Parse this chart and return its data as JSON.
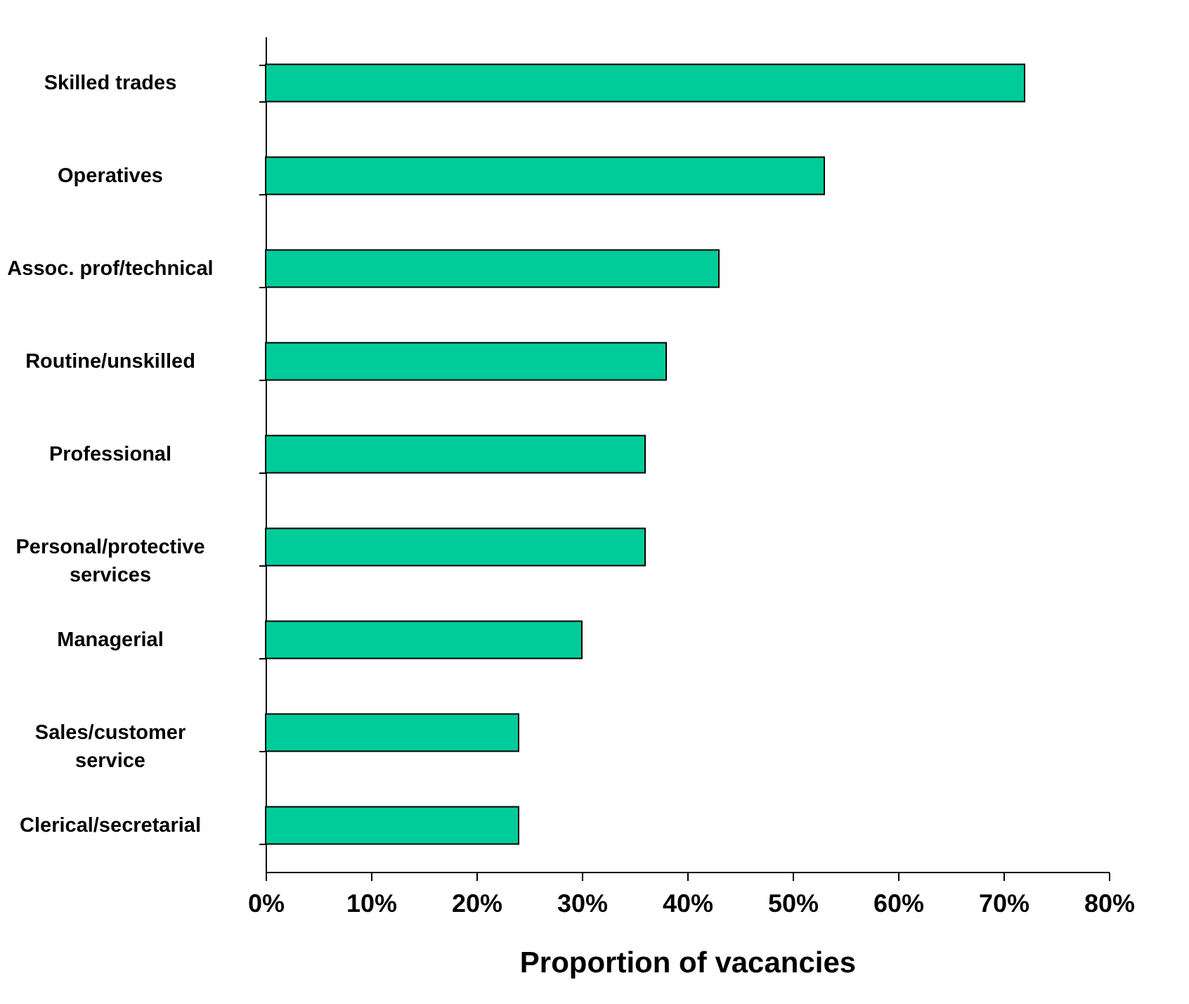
{
  "chart_data": {
    "type": "bar",
    "orientation": "horizontal",
    "xlabel": "Proportion of vacancies",
    "categories": [
      "Skilled trades",
      "Operatives",
      "Assoc. prof/technical",
      "Routine/unskilled",
      "Professional",
      "Personal/protective services",
      "Managerial",
      "Sales/customer service",
      "Clerical/secretarial"
    ],
    "values": [
      72,
      53,
      43,
      38,
      36,
      36,
      30,
      24,
      24
    ],
    "color": "#00cc99",
    "xlim": [
      0,
      80
    ],
    "xticks": [
      {
        "value": 0,
        "label": "0%"
      },
      {
        "value": 10,
        "label": "10%"
      },
      {
        "value": 20,
        "label": "20%"
      },
      {
        "value": 30,
        "label": "30%"
      },
      {
        "value": 40,
        "label": "40%"
      },
      {
        "value": 50,
        "label": "50%"
      },
      {
        "value": 60,
        "label": "60%"
      },
      {
        "value": 70,
        "label": "70%"
      },
      {
        "value": 80,
        "label": "80%"
      }
    ],
    "grid": false
  }
}
